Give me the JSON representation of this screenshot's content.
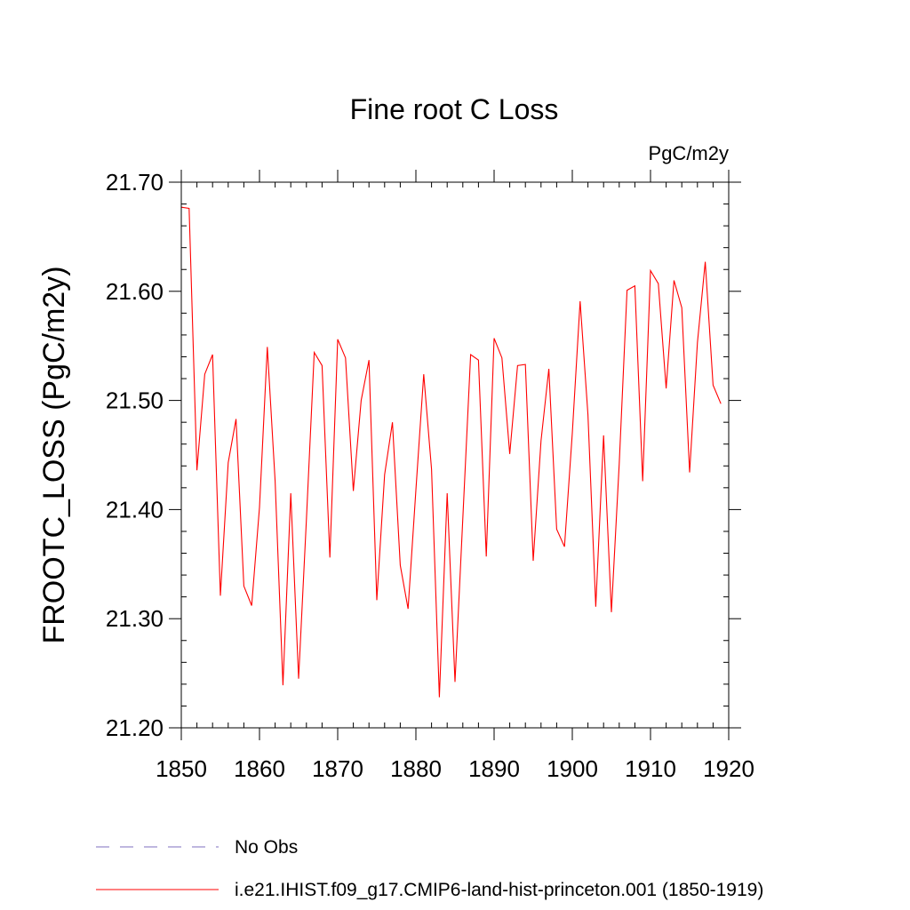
{
  "chart_data": {
    "type": "line",
    "title": "Fine root C Loss",
    "units_label": "PgC/m2y",
    "ylabel": "FROOTC_LOSS  (PgC/m2y)",
    "xlabel": "",
    "xlim": [
      1850,
      1920
    ],
    "ylim": [
      21.2,
      21.7
    ],
    "x_ticks": [
      1850,
      1860,
      1870,
      1880,
      1890,
      1900,
      1910,
      1920
    ],
    "y_ticks": [
      21.2,
      21.3,
      21.4,
      21.5,
      21.6,
      21.7
    ],
    "y_tick_labels": [
      "21.20",
      "21.30",
      "21.40",
      "21.50",
      "21.60",
      "21.70"
    ],
    "grid": false,
    "legend_position": "bottom-left",
    "series": [
      {
        "name": "i.e21.IHIST.f09_g17.CMIP6-land-hist-princeton.001 (1850-1919)",
        "color": "#ff0000",
        "style": "solid",
        "x": [
          1850,
          1851,
          1852,
          1853,
          1854,
          1855,
          1856,
          1857,
          1858,
          1859,
          1860,
          1861,
          1862,
          1863,
          1864,
          1865,
          1866,
          1867,
          1868,
          1869,
          1870,
          1871,
          1872,
          1873,
          1874,
          1875,
          1876,
          1877,
          1878,
          1879,
          1880,
          1881,
          1882,
          1883,
          1884,
          1885,
          1886,
          1887,
          1888,
          1889,
          1890,
          1891,
          1892,
          1893,
          1894,
          1895,
          1896,
          1897,
          1898,
          1899,
          1900,
          1901,
          1902,
          1903,
          1904,
          1905,
          1906,
          1907,
          1908,
          1909,
          1910,
          1911,
          1912,
          1913,
          1914,
          1915,
          1916,
          1917,
          1918,
          1919
        ],
        "y": [
          21.677,
          21.676,
          21.436,
          21.524,
          21.542,
          21.321,
          21.443,
          21.483,
          21.33,
          21.312,
          21.402,
          21.549,
          21.426,
          21.239,
          21.415,
          21.245,
          21.391,
          21.544,
          21.532,
          21.356,
          21.556,
          21.539,
          21.417,
          21.5,
          21.537,
          21.317,
          21.432,
          21.48,
          21.349,
          21.309,
          21.418,
          21.524,
          21.437,
          21.228,
          21.415,
          21.242,
          21.392,
          21.542,
          21.537,
          21.357,
          21.557,
          21.539,
          21.451,
          21.532,
          21.533,
          21.353,
          21.463,
          21.529,
          21.382,
          21.366,
          21.47,
          21.591,
          21.487,
          21.311,
          21.468,
          21.306,
          21.442,
          21.601,
          21.605,
          21.426,
          21.619,
          21.607,
          21.511,
          21.61,
          21.585,
          21.434,
          21.553,
          21.627,
          21.514,
          21.497
        ]
      },
      {
        "name": "No Obs",
        "color": "#7f6fbf",
        "style": "dashed",
        "x": [],
        "y": []
      }
    ]
  }
}
